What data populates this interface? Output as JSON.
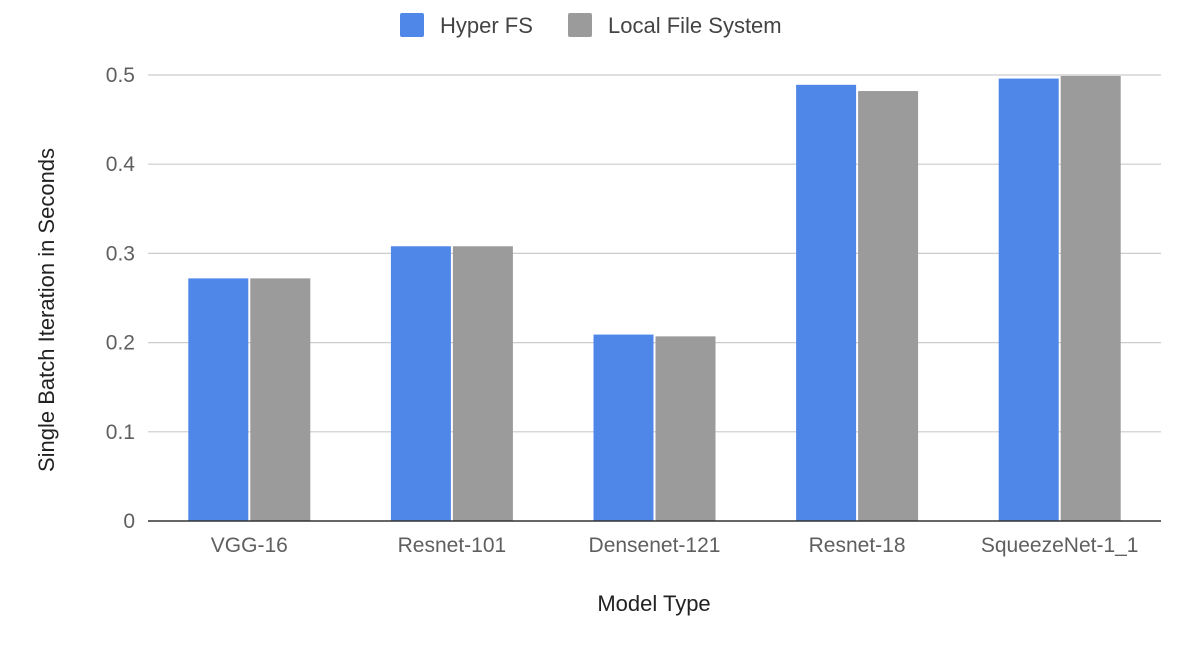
{
  "chart_data": {
    "type": "bar",
    "categories": [
      "VGG-16",
      "Resnet-101",
      "Densenet-121",
      "Resnet-18",
      "SqueezeNet-1_1"
    ],
    "series": [
      {
        "name": "Hyper FS",
        "color": "#4F87E9",
        "values": [
          0.272,
          0.308,
          0.209,
          0.489,
          0.496
        ]
      },
      {
        "name": "Local File System",
        "color": "#9B9B9B",
        "values": [
          0.272,
          0.308,
          0.207,
          0.482,
          0.499
        ]
      }
    ],
    "xlabel": "Model Type",
    "ylabel": "Single Batch Iteration in Seconds",
    "ylim": [
      0,
      0.5
    ],
    "yticks": [
      0,
      0.1,
      0.2,
      0.3,
      0.4,
      0.5
    ],
    "ytick_labels": [
      "0",
      "0.1",
      "0.2",
      "0.3",
      "0.4",
      "0.5"
    ],
    "grid": true,
    "legend_position": "top-center"
  }
}
